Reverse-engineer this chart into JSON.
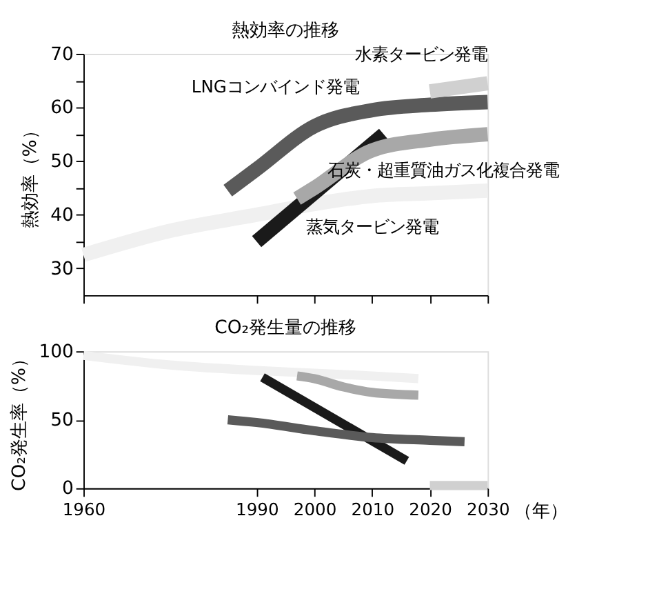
{
  "chart_data": [
    {
      "type": "line",
      "title": "熱効率の推移",
      "ylabel": "熱効率（%）",
      "xlim": [
        1960,
        2030
      ],
      "xticks": [
        1960,
        1990,
        2000,
        2010,
        2020,
        2030
      ],
      "ylim": [
        25,
        70
      ],
      "yticks": [
        30,
        {
          "value": 35,
          "label": null
        },
        40,
        {
          "value": 45,
          "label": null
        },
        50,
        {
          "value": 55,
          "label": null
        },
        60,
        {
          "value": 65,
          "label": null
        },
        70
      ],
      "tick_labels": "y",
      "grid": false,
      "series": [
        {
          "name": "蒸気タービン発電",
          "color": "#f0f0f0",
          "x": [
            1960,
            1975,
            1990,
            2000,
            2010,
            2020,
            2030
          ],
          "values": [
            32.5,
            37,
            40,
            42,
            43.5,
            44,
            44.5
          ]
        },
        {
          "color": "#1a1a1a",
          "x": [
            1990,
            2012
          ],
          "values": [
            35,
            55
          ]
        },
        {
          "name": "石炭・超重質油ガス化複合発電",
          "color": "#a8a8a8",
          "x": [
            1997,
            2000,
            2010,
            2020,
            2030
          ],
          "values": [
            43,
            45,
            52,
            54,
            55
          ]
        },
        {
          "name": "LNGコンバインド発電",
          "color": "#5a5a5a",
          "x": [
            1985,
            1990,
            2000,
            2010,
            2020,
            2030
          ],
          "values": [
            44.5,
            48.5,
            56.5,
            59.5,
            60.5,
            61
          ]
        },
        {
          "name": "水素タービン発電",
          "color": "#d0d0d0",
          "x": [
            2020,
            2030
          ],
          "values": [
            63,
            64.5
          ]
        }
      ]
    },
    {
      "type": "line",
      "title": "CO₂発生量の推移",
      "ylabel": "CO₂発生率（%）",
      "xlabel": "（年）",
      "xlim": [
        1960,
        2030
      ],
      "xticks": [
        1960,
        1990,
        2000,
        2010,
        2020,
        2030
      ],
      "ylim": [
        0,
        100
      ],
      "yticks": [
        0,
        50,
        100
      ],
      "grid": false,
      "series": [
        {
          "color": "#f0f0f0",
          "x": [
            1960,
            1975,
            1990,
            2000,
            2010,
            2018
          ],
          "values": [
            97,
            90,
            86,
            84,
            82,
            80
          ]
        },
        {
          "color": "#1a1a1a",
          "x": [
            1991,
            2016
          ],
          "values": [
            81,
            20
          ]
        },
        {
          "color": "#a8a8a8",
          "x": [
            1997,
            2000,
            2005,
            2010,
            2018
          ],
          "values": [
            82,
            80,
            74,
            70,
            68
          ]
        },
        {
          "color": "#5a5a5a",
          "x": [
            1985,
            1990,
            2000,
            2010,
            2020,
            2026
          ],
          "values": [
            50,
            48,
            42,
            37,
            35,
            34
          ]
        },
        {
          "color": "#d0d0d0",
          "x": [
            2020,
            2030
          ],
          "values": [
            2,
            2
          ]
        }
      ]
    }
  ]
}
